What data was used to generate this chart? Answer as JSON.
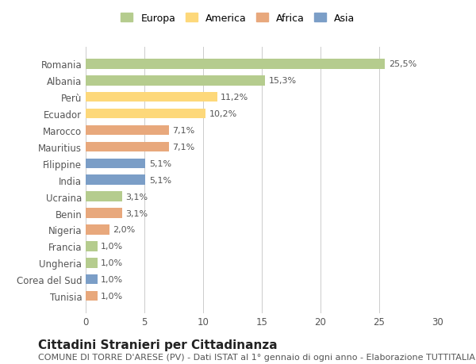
{
  "title": "Cittadini Stranieri per Cittadinanza",
  "subtitle": "COMUNE DI TORRE D'ARESE (PV) - Dati ISTAT al 1° gennaio di ogni anno - Elaborazione TUTTITALIA.IT",
  "categories": [
    "Romania",
    "Albania",
    "Perù",
    "Ecuador",
    "Marocco",
    "Mauritius",
    "Filippine",
    "India",
    "Ucraina",
    "Benin",
    "Nigeria",
    "Francia",
    "Ungheria",
    "Corea del Sud",
    "Tunisia"
  ],
  "values": [
    25.5,
    15.3,
    11.2,
    10.2,
    7.1,
    7.1,
    5.1,
    5.1,
    3.1,
    3.1,
    2.0,
    1.0,
    1.0,
    1.0,
    1.0
  ],
  "labels": [
    "25,5%",
    "15,3%",
    "11,2%",
    "10,2%",
    "7,1%",
    "7,1%",
    "5,1%",
    "5,1%",
    "3,1%",
    "3,1%",
    "2,0%",
    "1,0%",
    "1,0%",
    "1,0%",
    "1,0%"
  ],
  "colors": [
    "#b5cc8e",
    "#b5cc8e",
    "#fdd87a",
    "#fdd87a",
    "#e8a87c",
    "#e8a87c",
    "#7b9ec7",
    "#7b9ec7",
    "#b5cc8e",
    "#e8a87c",
    "#e8a87c",
    "#b5cc8e",
    "#b5cc8e",
    "#7b9ec7",
    "#e8a87c"
  ],
  "legend": [
    {
      "label": "Europa",
      "color": "#b5cc8e"
    },
    {
      "label": "America",
      "color": "#fdd87a"
    },
    {
      "label": "Africa",
      "color": "#e8a87c"
    },
    {
      "label": "Asia",
      "color": "#7b9ec7"
    }
  ],
  "xlim": [
    0,
    30
  ],
  "xticks": [
    0,
    5,
    10,
    15,
    20,
    25,
    30
  ],
  "background_color": "#ffffff",
  "grid_color": "#cccccc",
  "bar_height": 0.6,
  "title_fontsize": 11,
  "subtitle_fontsize": 8,
  "label_fontsize": 8,
  "tick_fontsize": 8.5,
  "legend_fontsize": 9
}
